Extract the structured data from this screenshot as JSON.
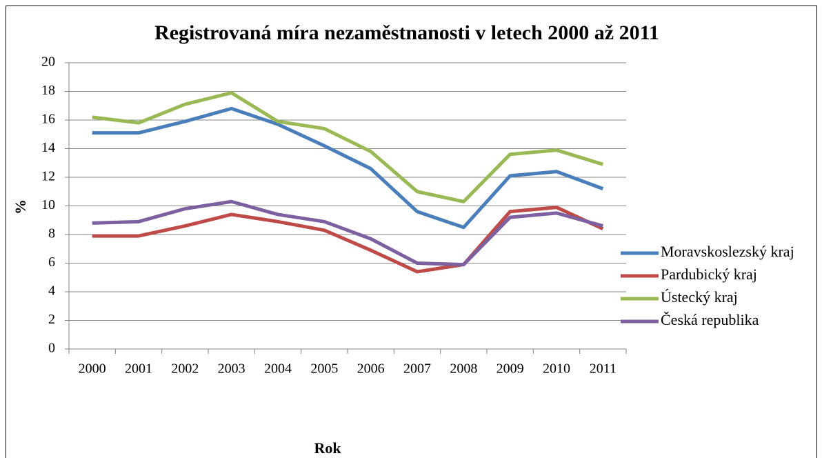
{
  "chart_data": {
    "type": "line",
    "title": "Registrovaná míra nezaměstnanosti v letech 2000 až 2011",
    "x_label": "Rok",
    "y_label": "%",
    "categories": [
      "2000",
      "2001",
      "2002",
      "2003",
      "2004",
      "2005",
      "2006",
      "2007",
      "2008",
      "2009",
      "2010",
      "2011"
    ],
    "series": [
      {
        "name": "Moravskoslezský kraj",
        "color": "#4a7ebb",
        "values": [
          15.1,
          15.1,
          15.9,
          16.8,
          15.7,
          14.2,
          12.6,
          9.6,
          8.5,
          12.1,
          12.4,
          11.2
        ]
      },
      {
        "name": "Pardubický kraj",
        "color": "#be4b48",
        "values": [
          7.9,
          7.9,
          8.6,
          9.4,
          8.9,
          8.3,
          6.9,
          5.4,
          5.9,
          9.6,
          9.9,
          8.4
        ]
      },
      {
        "name": "Ústecký kraj",
        "color": "#98b954",
        "values": [
          16.2,
          15.8,
          17.1,
          17.9,
          15.9,
          15.4,
          13.8,
          11.0,
          10.3,
          13.6,
          13.9,
          12.9
        ]
      },
      {
        "name": "Česká republika",
        "color": "#7d60a0",
        "values": [
          8.8,
          8.9,
          9.8,
          10.3,
          9.4,
          8.9,
          7.7,
          6.0,
          5.9,
          9.2,
          9.5,
          8.6
        ]
      }
    ],
    "ylim": [
      0,
      20
    ],
    "yticks": [
      0,
      2,
      4,
      6,
      8,
      10,
      12,
      14,
      16,
      18,
      20
    ],
    "grid": true,
    "legend": "right"
  }
}
